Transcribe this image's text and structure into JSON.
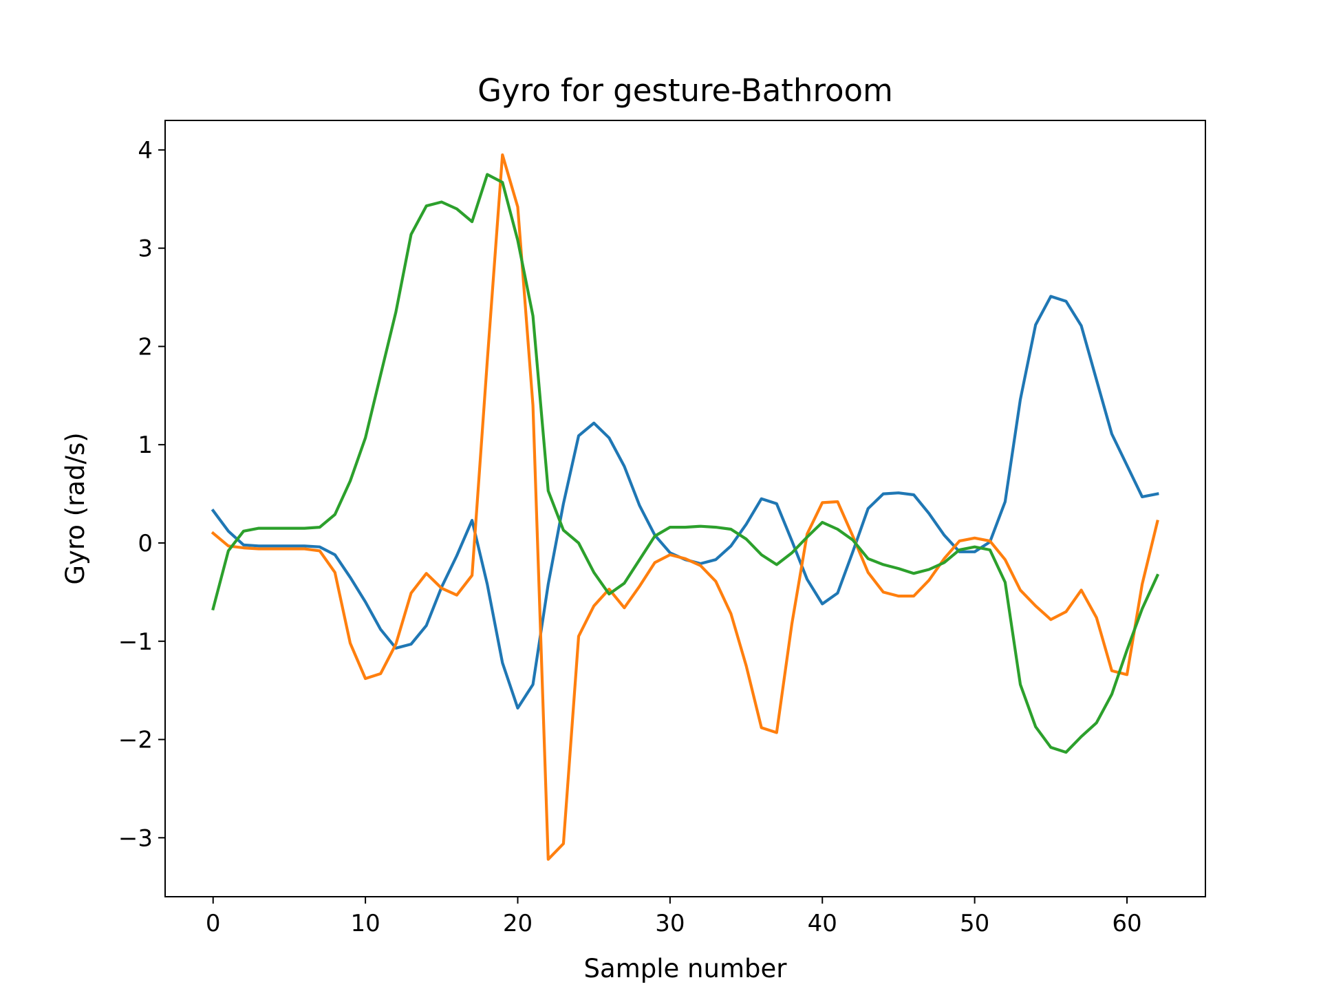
{
  "chart_data": {
    "type": "line",
    "title": "Gyro for gesture-Bathroom",
    "xlabel": "Sample number",
    "ylabel": "Gyro  (rad/s)",
    "xlim": [
      -3.15,
      65.15
    ],
    "ylim": [
      -3.6,
      4.3
    ],
    "xticks": [
      0,
      10,
      20,
      30,
      40,
      50,
      60
    ],
    "yticks": [
      4,
      3,
      2,
      1,
      0,
      -1,
      -2,
      -3
    ],
    "xtick_labels": [
      "0",
      "10",
      "20",
      "30",
      "40",
      "50",
      "60"
    ],
    "ytick_labels": [
      "4",
      "3",
      "2",
      "1",
      "0",
      "−1",
      "−2",
      "−3"
    ],
    "grid": false,
    "legend": "none",
    "x": [
      0,
      1,
      2,
      3,
      4,
      5,
      6,
      7,
      8,
      9,
      10,
      11,
      12,
      13,
      14,
      15,
      16,
      17,
      18,
      19,
      20,
      21,
      22,
      23,
      24,
      25,
      26,
      27,
      28,
      29,
      30,
      31,
      32,
      33,
      34,
      35,
      36,
      37,
      38,
      39,
      40,
      41,
      42,
      43,
      44,
      45,
      46,
      47,
      48,
      49,
      50,
      51,
      52,
      53,
      54,
      55,
      56,
      57,
      58,
      59,
      60,
      61,
      62
    ],
    "series": [
      {
        "color": "#1f77b4",
        "values": [
          0.33,
          0.12,
          -0.02,
          -0.03,
          -0.03,
          -0.03,
          -0.03,
          -0.04,
          -0.12,
          -0.35,
          -0.6,
          -0.88,
          -1.07,
          -1.03,
          -0.84,
          -0.45,
          -0.13,
          0.23,
          -0.42,
          -1.22,
          -1.68,
          -1.44,
          -0.42,
          0.4,
          1.09,
          1.22,
          1.07,
          0.78,
          0.38,
          0.08,
          -0.1,
          -0.17,
          -0.21,
          -0.17,
          -0.03,
          0.19,
          0.45,
          0.4,
          0.02,
          -0.37,
          -0.62,
          -0.51,
          -0.09,
          0.35,
          0.5,
          0.51,
          0.49,
          0.3,
          0.08,
          -0.09,
          -0.09,
          0.01,
          0.42,
          1.46,
          2.22,
          2.51,
          2.46,
          2.21,
          1.66,
          1.11,
          0.79,
          0.47,
          0.5
        ]
      },
      {
        "color": "#ff7f0e",
        "values": [
          0.1,
          -0.03,
          -0.05,
          -0.06,
          -0.06,
          -0.06,
          -0.06,
          -0.08,
          -0.3,
          -1.02,
          -1.38,
          -1.33,
          -1.03,
          -0.51,
          -0.31,
          -0.46,
          -0.53,
          -0.33,
          1.85,
          3.95,
          3.42,
          1.4,
          -3.22,
          -3.06,
          -0.95,
          -0.64,
          -0.47,
          -0.66,
          -0.44,
          -0.2,
          -0.12,
          -0.16,
          -0.23,
          -0.39,
          -0.72,
          -1.25,
          -1.88,
          -1.93,
          -0.82,
          0.09,
          0.41,
          0.42,
          0.07,
          -0.3,
          -0.5,
          -0.54,
          -0.54,
          -0.38,
          -0.16,
          0.02,
          0.05,
          0.02,
          -0.17,
          -0.48,
          -0.64,
          -0.78,
          -0.7,
          -0.48,
          -0.76,
          -1.3,
          -1.34,
          -0.42,
          0.22
        ]
      },
      {
        "color": "#2ca02c",
        "values": [
          -0.67,
          -0.08,
          0.12,
          0.15,
          0.15,
          0.15,
          0.15,
          0.16,
          0.29,
          0.63,
          1.07,
          1.71,
          2.35,
          3.14,
          3.43,
          3.47,
          3.4,
          3.27,
          3.75,
          3.67,
          3.08,
          2.31,
          0.53,
          0.13,
          0.0,
          -0.3,
          -0.52,
          -0.41,
          -0.17,
          0.07,
          0.16,
          0.16,
          0.17,
          0.16,
          0.14,
          0.04,
          -0.12,
          -0.22,
          -0.1,
          0.06,
          0.21,
          0.14,
          0.03,
          -0.16,
          -0.22,
          -0.26,
          -0.31,
          -0.27,
          -0.2,
          -0.07,
          -0.04,
          -0.07,
          -0.4,
          -1.44,
          -1.87,
          -2.08,
          -2.13,
          -1.97,
          -1.83,
          -1.54,
          -1.09,
          -0.67,
          -0.33
        ]
      }
    ]
  }
}
